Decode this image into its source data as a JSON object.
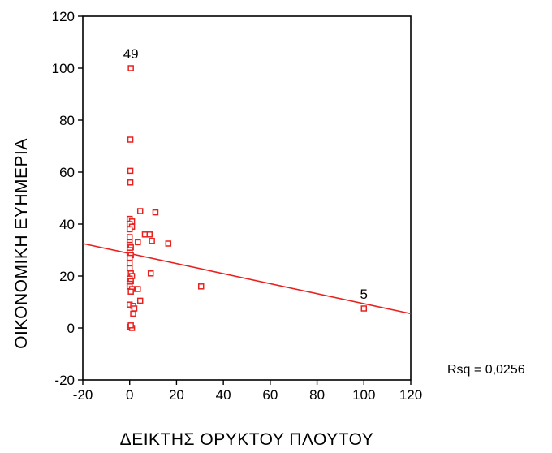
{
  "chart_data": {
    "type": "scatter",
    "xlabel": "ΔΕΙΚΤΗΣ ΟΡΥΚΤΟΥ ΠΛΟΥΤΟΥ",
    "ylabel": "ΟΙΚΟΝΟΜΙΚΗ ΕΥΗΜΕΡΙΑ",
    "xlim": [
      -20,
      120
    ],
    "ylim": [
      -20,
      120
    ],
    "xticks": [
      -20,
      0,
      20,
      40,
      60,
      80,
      100,
      120
    ],
    "yticks": [
      -20,
      0,
      20,
      40,
      60,
      80,
      100,
      120
    ],
    "x_tick_labels": [
      "-20",
      "0",
      "20",
      "40",
      "60",
      "80",
      "100",
      "120"
    ],
    "y_tick_labels": [
      "-20",
      "0",
      "20",
      "40",
      "60",
      "80",
      "100",
      "120"
    ],
    "marker": "open-square",
    "color": "#e8211f",
    "points": [
      [
        0.5,
        100
      ],
      [
        100,
        7.5
      ],
      [
        30.5,
        16
      ],
      [
        0.3,
        72.5
      ],
      [
        0.3,
        60.5
      ],
      [
        0.3,
        56
      ],
      [
        4.5,
        45
      ],
      [
        11,
        44.5
      ],
      [
        16.5,
        32.5
      ],
      [
        6.5,
        36
      ],
      [
        8.5,
        36
      ],
      [
        9.5,
        33.5
      ],
      [
        3.5,
        33
      ],
      [
        9,
        21
      ],
      [
        0,
        42
      ],
      [
        1,
        41
      ],
      [
        0,
        40
      ],
      [
        1,
        39
      ],
      [
        0,
        38
      ],
      [
        0,
        35
      ],
      [
        0,
        33
      ],
      [
        0,
        32
      ],
      [
        0.5,
        31
      ],
      [
        0,
        30
      ],
      [
        0,
        29
      ],
      [
        0.5,
        28
      ],
      [
        0,
        27
      ],
      [
        0,
        25
      ],
      [
        0,
        23
      ],
      [
        0.5,
        21
      ],
      [
        1,
        20
      ],
      [
        0,
        19
      ],
      [
        0.5,
        18
      ],
      [
        0,
        17
      ],
      [
        0,
        16
      ],
      [
        1,
        15
      ],
      [
        0.5,
        14
      ],
      [
        3.5,
        15
      ],
      [
        4.5,
        10.5
      ],
      [
        0,
        9
      ],
      [
        1.5,
        8.5
      ],
      [
        2,
        7.5
      ],
      [
        1.5,
        5.5
      ],
      [
        0,
        0.5
      ],
      [
        1,
        0
      ],
      [
        0.5,
        1
      ]
    ],
    "annotations": [
      {
        "label": "49",
        "x": 0.5,
        "y": 100
      },
      {
        "label": "5",
        "x": 100,
        "y": 7.5
      }
    ],
    "fit_line": {
      "x": [
        -20,
        120
      ],
      "y": [
        32.5,
        5.5
      ]
    },
    "rsq_label": "Rsq = 0,0256"
  }
}
